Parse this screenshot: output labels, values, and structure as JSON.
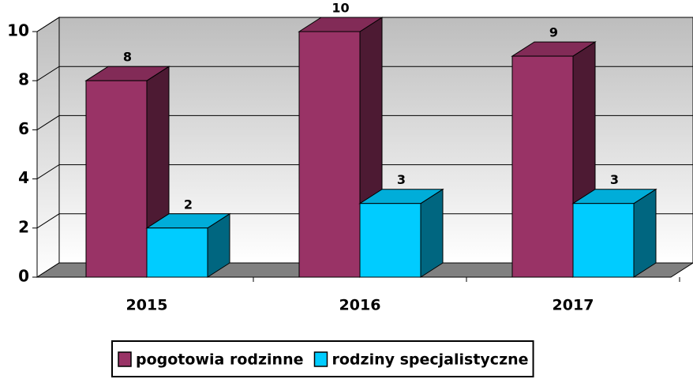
{
  "chart_data": {
    "type": "bar3d",
    "categories": [
      "2015",
      "2016",
      "2017"
    ],
    "series": [
      {
        "name": "pogotowia rodzinne",
        "color": "#993366",
        "values": [
          8,
          10,
          9
        ]
      },
      {
        "name": "rodziny specjalistyczne",
        "color": "#00ccff",
        "values": [
          2,
          3,
          3
        ]
      }
    ],
    "ylim": [
      0,
      10
    ],
    "yticks": [
      0,
      2,
      4,
      6,
      8,
      10
    ],
    "grid": true,
    "legend": "bottom"
  }
}
